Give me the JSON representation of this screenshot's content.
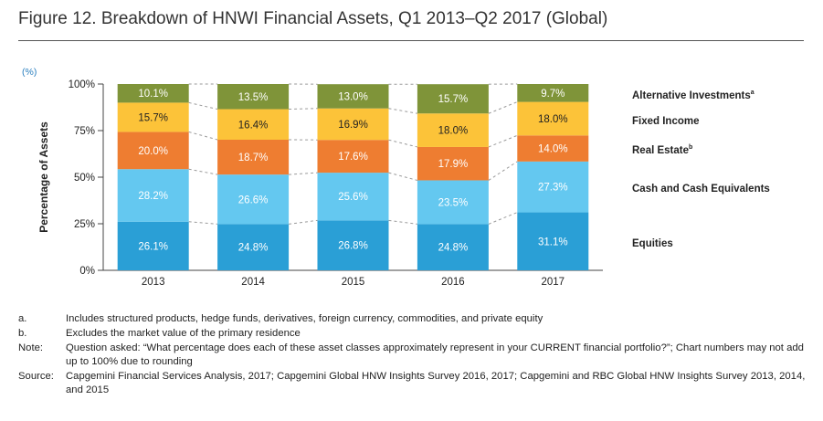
{
  "title": "Figure 12. Breakdown of HNWI Financial Assets, Q1 2013–Q2 2017 (Global)",
  "chart_data": {
    "type": "bar",
    "stacked": true,
    "unit_label": "(%)",
    "ylabel": "Percentage of Assets",
    "xlabel": "",
    "ylim": [
      0,
      100
    ],
    "yticks": [
      0,
      25,
      50,
      75,
      100
    ],
    "ytick_labels": [
      "0%",
      "25%",
      "50%",
      "75%",
      "100%"
    ],
    "categories": [
      "2013",
      "2014",
      "2015",
      "2016",
      "2017"
    ],
    "series": [
      {
        "name": "Equities",
        "sup": "",
        "color": "#2a9fd6",
        "values": [
          26.1,
          24.8,
          26.8,
          24.8,
          31.1
        ],
        "labels": [
          "26.1%",
          "24.8%",
          "26.8%",
          "24.8%",
          "31.1%"
        ]
      },
      {
        "name": "Cash and Cash Equivalents",
        "sup": "",
        "color": "#64c8f0",
        "values": [
          28.2,
          26.6,
          25.6,
          23.5,
          27.3
        ],
        "labels": [
          "28.2%",
          "26.6%",
          "25.6%",
          "23.5%",
          "27.3%"
        ]
      },
      {
        "name": "Real Estate",
        "sup": "b",
        "color": "#ee7d31",
        "values": [
          20.0,
          18.7,
          17.6,
          17.9,
          14.0
        ],
        "labels": [
          "20.0%",
          "18.7%",
          "17.6%",
          "17.9%",
          "14.0%"
        ]
      },
      {
        "name": "Fixed Income",
        "sup": "",
        "color": "#fcc339",
        "values": [
          15.7,
          16.4,
          16.9,
          18.0,
          18.0
        ],
        "labels": [
          "15.7%",
          "16.4%",
          "16.9%",
          "18.0%",
          "18.0%"
        ]
      },
      {
        "name": "Alternative Investments",
        "sup": "a",
        "color": "#7f9439",
        "values": [
          10.1,
          13.5,
          13.0,
          15.7,
          9.7
        ],
        "labels": [
          "10.1%",
          "13.5%",
          "13.0%",
          "15.7%",
          "9.7%"
        ]
      }
    ],
    "legend_position": "right"
  },
  "notes": [
    {
      "key": "a.",
      "text": "Includes structured products, hedge funds, derivatives, foreign currency, commodities, and private equity"
    },
    {
      "key": "b.",
      "text": "Excludes the market value of the primary residence"
    },
    {
      "key": "Note:",
      "text": "Question asked: “What percentage does each of these asset classes approximately represent in your CURRENT financial portfolio?”; Chart numbers may not add up to 100% due to rounding"
    },
    {
      "key": "Source:",
      "text": "Capgemini Financial Services Analysis, 2017; Capgemini Global HNW Insights Survey 2016, 2017; Capgemini and RBC Global HNW Insights Survey 2013, 2014, and 2015"
    }
  ]
}
